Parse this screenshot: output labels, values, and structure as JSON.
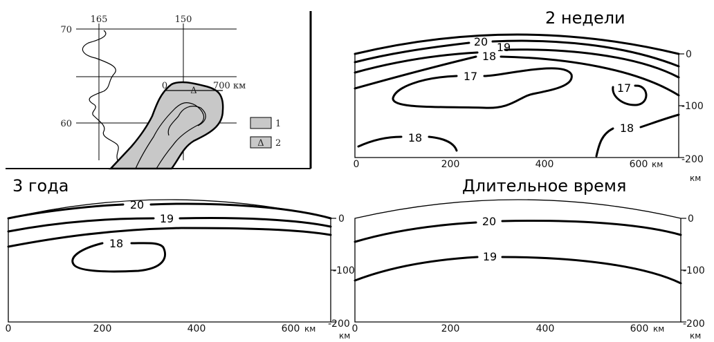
{
  "map_panel": {
    "lon_labels": [
      "165",
      "150"
    ],
    "lat_labels": [
      "70",
      "60"
    ],
    "scale_start": "0",
    "scale_end": "700 км",
    "legend": [
      {
        "key": "1",
        "swatch": "#c8c8c8"
      },
      {
        "key": "2",
        "swatch": "#c8c8c8",
        "symbol": "Δ"
      }
    ]
  },
  "panels": {
    "two_weeks": {
      "title": "2 недели",
      "x_ticks": [
        "0",
        "200",
        "400",
        "600"
      ],
      "x_unit": "км",
      "depth_ticks": [
        "0",
        "-100",
        "-200"
      ],
      "depth_unit": "км",
      "contour_labels": [
        "20",
        "19",
        "18",
        "17",
        "17",
        "18",
        "18"
      ]
    },
    "three_years": {
      "title": "3 года",
      "x_ticks": [
        "0",
        "200",
        "400",
        "600"
      ],
      "x_unit": "км",
      "depth_ticks": [
        "0",
        "-100",
        "-200"
      ],
      "depth_unit": "км",
      "contour_labels": [
        "20",
        "19",
        "18"
      ]
    },
    "long_time": {
      "title": "Длительное время",
      "x_ticks": [
        "0",
        "200",
        "400",
        "600"
      ],
      "x_unit": "км",
      "depth_ticks": [
        "0",
        "-100",
        "-200"
      ],
      "depth_unit": "км",
      "contour_labels": [
        "20",
        "19"
      ]
    }
  }
}
